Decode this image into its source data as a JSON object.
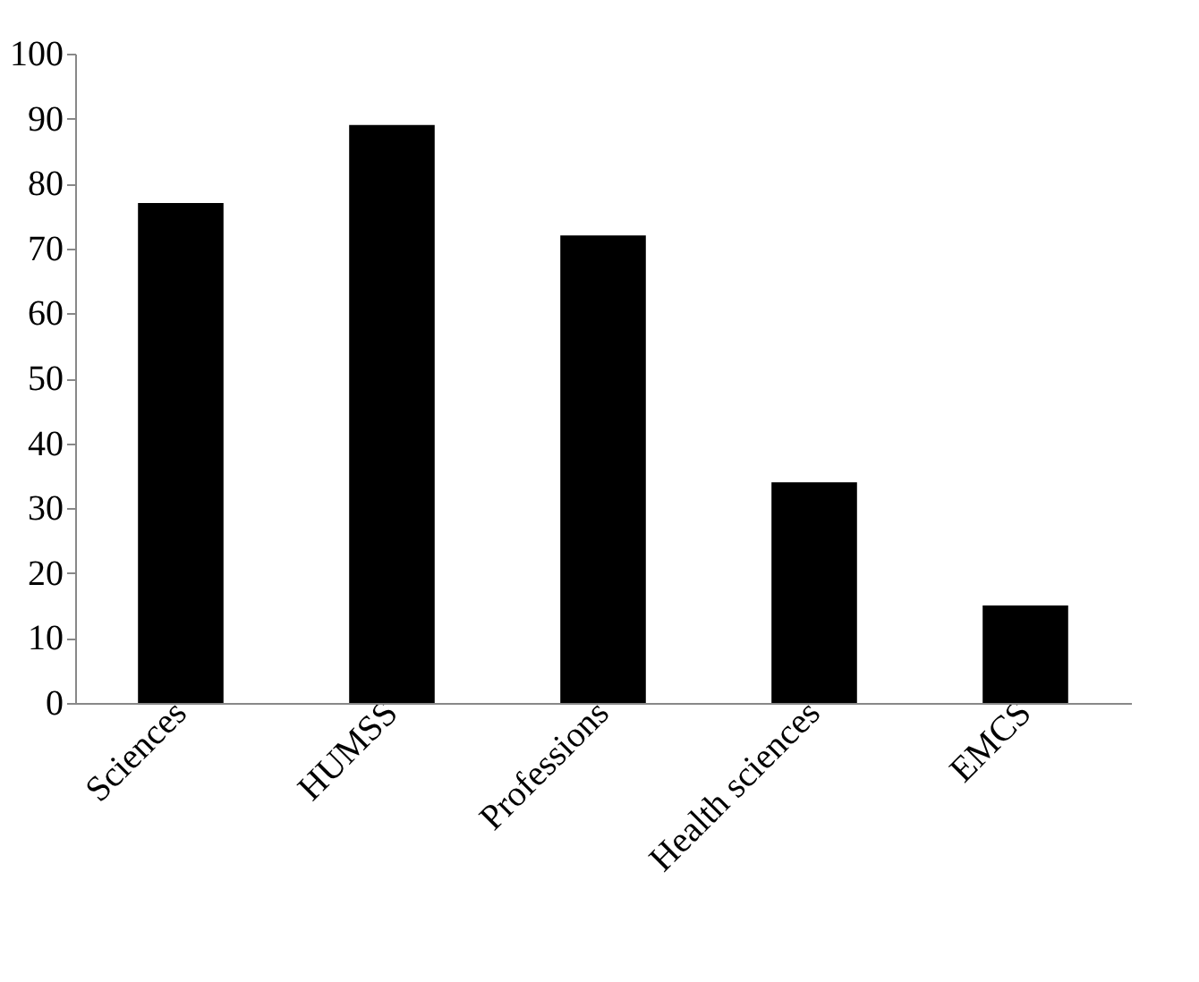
{
  "chart_data": {
    "type": "bar",
    "categories": [
      "Sciences",
      "HUMSS",
      "Professions",
      "Health sciences",
      "EMCS"
    ],
    "values": [
      77,
      89,
      72,
      34,
      15
    ],
    "color": "#000000",
    "ylim": [
      0,
      100
    ],
    "yticks": [
      0,
      10,
      20,
      30,
      40,
      50,
      60,
      70,
      80,
      90,
      100
    ],
    "grid": false
  }
}
